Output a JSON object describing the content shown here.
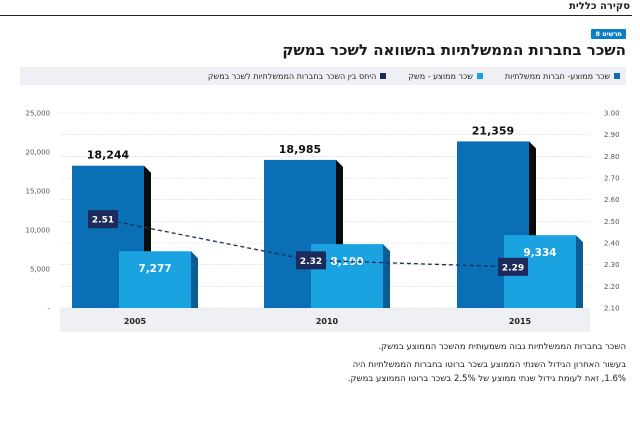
{
  "header": {
    "section_title": "סקירה כללית"
  },
  "figure": {
    "badge": "תרשים 8",
    "title": "השכר בחברות הממשלתיות בהשוואה לשכר במשק"
  },
  "legend": [
    {
      "label": "שכר ממוצע- חברות ממשלתיות",
      "color": "#0a6fb4"
    },
    {
      "label": "שכר ממוצע - משק",
      "color": "#1aa3e0"
    },
    {
      "label": "היחס בין השכר בחברות הממשלתיות לשכר במשק",
      "color": "#1c2a5c"
    }
  ],
  "chart_data": {
    "type": "bar",
    "categories": [
      "2005",
      "2010",
      "2015"
    ],
    "series": [
      {
        "name": "שכר ממוצע- חברות ממשלתיות",
        "axis": "left",
        "values": [
          18244,
          18985,
          21359
        ],
        "labels": [
          "18,244",
          "18,985",
          "21,359"
        ]
      },
      {
        "name": "שכר ממוצע - משק",
        "axis": "left",
        "values": [
          7277,
          8190,
          9334
        ],
        "labels": [
          "7,277",
          "8,190",
          "9,334"
        ]
      },
      {
        "name": "היחס בין השכר בחברות הממשלתיות לשכר במשק",
        "type": "line",
        "axis": "right",
        "values": [
          2.51,
          2.32,
          2.29
        ],
        "labels": [
          "2.51",
          "2.32",
          "2.29"
        ]
      }
    ],
    "left_axis": {
      "ylim": [
        0,
        25000
      ],
      "ticks": [
        0,
        5000,
        10000,
        15000,
        20000,
        25000
      ],
      "tick_labels": [
        "-",
        "5,000",
        "10,000",
        "15,000",
        "20,000",
        "25,000"
      ]
    },
    "right_axis": {
      "ylim": [
        2.1,
        3.0
      ],
      "tick_labels": [
        "2.10",
        "2.20",
        "2.30",
        "2.40",
        "2.50",
        "2.60",
        "2.70",
        "2.80",
        "2.90",
        "3.00"
      ]
    },
    "grid": true
  },
  "notes": {
    "line1": "השכר בחברות הממשלתיות גבוה משמעותית מהשכר הממוצע במשק.",
    "line2": "בעשור האחרון הגידול השנתי הממוצע בשכר ברוטו בחברות הממשלתיות היה",
    "line3": "1.6%, זאת לעומת גידול שנתי ממוצע של 2.5% בשכר ברוטו הממוצע במשק."
  }
}
